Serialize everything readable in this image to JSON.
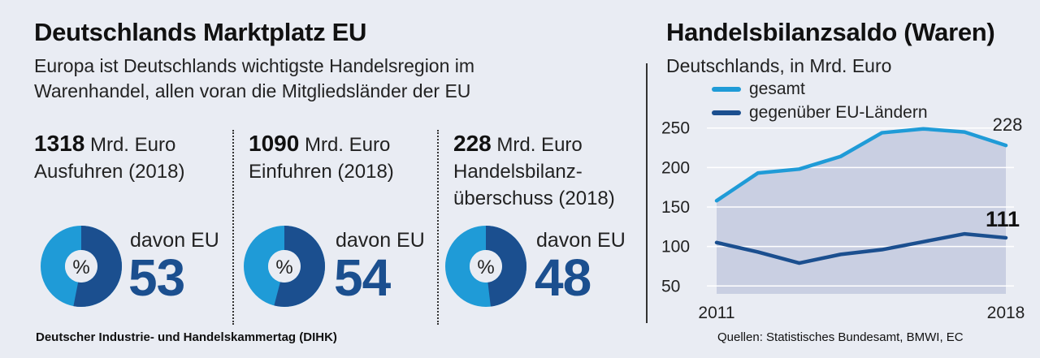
{
  "left": {
    "title": "Deutschlands Marktplatz EU",
    "subtitle_line1": "Europa ist Deutschlands wichtigste Handelsregion im",
    "subtitle_line2": "Warenhandel, allen voran die Mitgliedsländer der EU",
    "stats": [
      {
        "value": "1318",
        "unit": "Mrd. Euro",
        "label1": "Ausfuhren (2018)",
        "label2": "",
        "davon": "davon EU",
        "eu_pct": "53",
        "pct_symbol": "%",
        "eu_share": 0.53
      },
      {
        "value": "1090",
        "unit": "Mrd. Euro",
        "label1": "Einfuhren (2018)",
        "label2": "",
        "davon": "davon EU",
        "eu_pct": "54",
        "pct_symbol": "%",
        "eu_share": 0.54
      },
      {
        "value": "228",
        "unit": "Mrd. Euro",
        "label1": "Handelsbilanz-",
        "label2": "überschuss (2018)",
        "davon": "davon EU",
        "eu_pct": "48",
        "pct_symbol": "%",
        "eu_share": 0.48
      }
    ],
    "footer": "Deutscher Industrie- und Handelskammertag (DIHK)"
  },
  "right": {
    "title": "Handelsbilanzsaldo (Waren)",
    "subtitle": "Deutschlands, in Mrd. Euro",
    "source": "Quellen: Statistisches Bundesamt, BMWI, EC"
  },
  "colors": {
    "light_blue": "#1f9bd7",
    "dark_blue": "#1b4f8f",
    "area_fill": "#c9cfe2"
  },
  "chart_data": {
    "type": "line",
    "title": "Handelsbilanzsaldo (Waren)",
    "subtitle": "Deutschlands, in Mrd. Euro",
    "x": [
      2011,
      2012,
      2013,
      2014,
      2015,
      2016,
      2017,
      2018
    ],
    "x_tick_labels": [
      "2011",
      "2018"
    ],
    "y_ticks": [
      50,
      100,
      150,
      200,
      250
    ],
    "ylim": [
      40,
      260
    ],
    "grid": true,
    "legend_position": "top-left",
    "series": [
      {
        "name": "gesamt",
        "color": "#1f9bd7",
        "values": [
          158,
          193,
          198,
          214,
          244,
          249,
          245,
          228
        ],
        "end_label": "228",
        "area": true
      },
      {
        "name": "gegenüber EU-Ländern",
        "color": "#1b4f8f",
        "values": [
          105,
          93,
          79,
          90,
          96,
          106,
          116,
          111
        ],
        "end_label": "111"
      }
    ]
  }
}
